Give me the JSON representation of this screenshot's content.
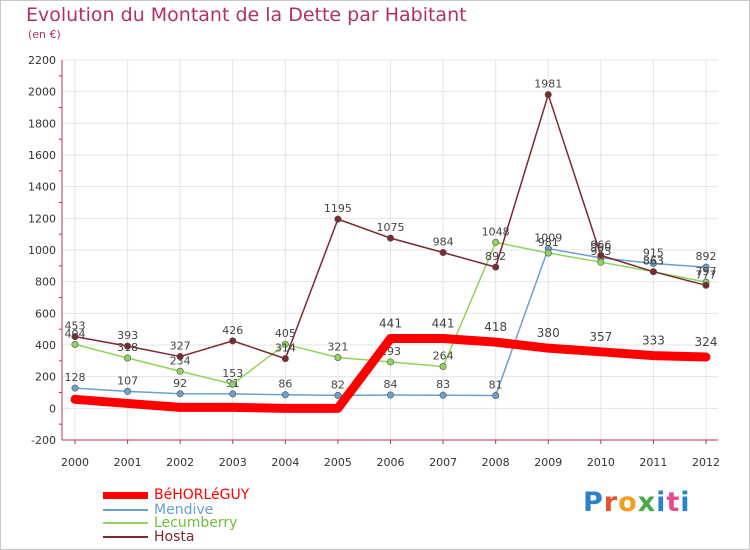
{
  "header": {
    "title": "Evolution du Montant de la Dette par Habitant",
    "subtitle": "(en €)"
  },
  "logo": {
    "text": "Proxiti",
    "colors": [
      "#2a82c8",
      "#e8512a",
      "#f0a020",
      "#4aa84a",
      "#2a82c8",
      "#e84a8a",
      "#2a82c8"
    ]
  },
  "chart_data": {
    "type": "line",
    "x": [
      "2000",
      "2001",
      "2002",
      "2003",
      "2004",
      "2005",
      "2006",
      "2007",
      "2008",
      "2009",
      "2010",
      "2011",
      "2012"
    ],
    "ylim": [
      -200,
      2200
    ],
    "yticks": [
      "-200",
      "0",
      "200",
      "400",
      "600",
      "800",
      "1000",
      "1200",
      "1400",
      "1600",
      "1800",
      "2000",
      "2200"
    ],
    "grid": true,
    "legend_position": "bottom-left",
    "series": [
      {
        "name": "Mendive",
        "color": "#6aa0cf",
        "values": [
          128,
          107,
          92,
          91,
          86,
          82,
          84,
          83,
          81,
          1009,
          950,
          915,
          892
        ],
        "labels": [
          "128",
          "107",
          "92",
          "91",
          "86",
          "82",
          "84",
          "83",
          "81",
          "1009",
          "950",
          "915",
          "892"
        ]
      },
      {
        "name": "Lecumberry",
        "color": "#8fd45a",
        "values": [
          404,
          318,
          234,
          153,
          405,
          321,
          293,
          264,
          1048,
          981,
          923,
          863,
          797
        ],
        "labels": [
          "404",
          "318",
          "234",
          "153",
          "405",
          "321",
          "293",
          "264",
          "1048",
          "981",
          "923",
          "863",
          "797"
        ]
      },
      {
        "name": "Hosta",
        "color": "#7a2a30",
        "values": [
          453,
          393,
          327,
          426,
          314,
          1195,
          1075,
          984,
          892,
          1981,
          966,
          863,
          777
        ],
        "labels": [
          "453",
          "393",
          "327",
          "426",
          "314",
          "1195",
          "1075",
          "984",
          "892",
          "1981",
          "966",
          "863",
          "777"
        ]
      },
      {
        "name": "BéHORLéGUY",
        "color": "#ff0000",
        "values": [
          57,
          31,
          6,
          6,
          0,
          0,
          441,
          441,
          418,
          380,
          357,
          333,
          324
        ],
        "labels": [
          "",
          "",
          "",
          "",
          "",
          "",
          "441",
          "441",
          "418",
          "380",
          "357",
          "333",
          "324"
        ]
      }
    ],
    "legend": [
      "BéHORLéGUY",
      "Mendive",
      "Lecumberry",
      "Hosta"
    ]
  }
}
